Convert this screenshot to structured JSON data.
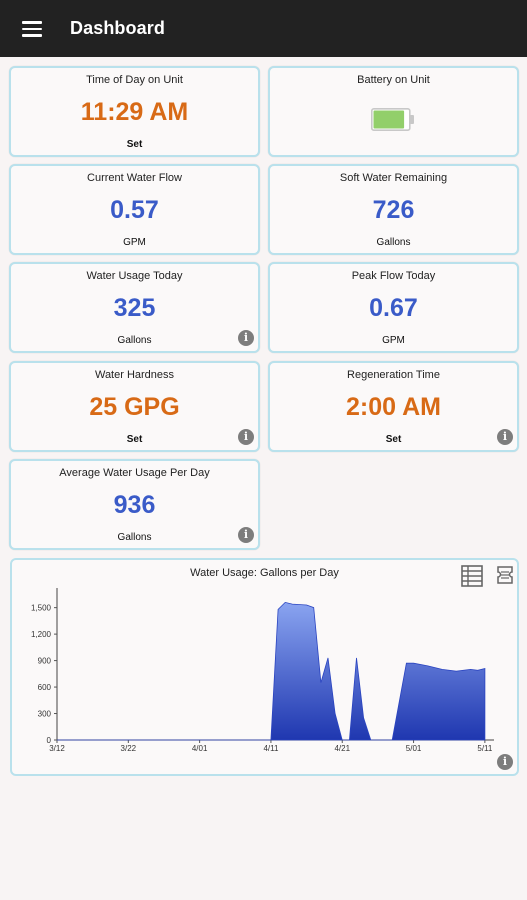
{
  "app": {
    "title": "Dashboard",
    "menu_icon": "menu-icon"
  },
  "cards": {
    "time_of_day": {
      "label": "Time of Day on Unit",
      "value": "11:29 AM",
      "unit": "Set"
    },
    "battery": {
      "label": "Battery on Unit",
      "level": 0.9,
      "icon": "battery-icon"
    },
    "current_flow": {
      "label": "Current Water Flow",
      "value": "0.57",
      "unit": "GPM"
    },
    "soft_water": {
      "label": "Soft Water Remaining",
      "value": "726",
      "unit": "Gallons"
    },
    "usage_today": {
      "label": "Water Usage Today",
      "value": "325",
      "unit": "Gallons"
    },
    "peak_flow": {
      "label": "Peak Flow Today",
      "value": "0.67",
      "unit": "GPM"
    },
    "hardness": {
      "label": "Water Hardness",
      "value": "25 GPG",
      "unit": "Set"
    },
    "regeneration": {
      "label": "Regeneration Time",
      "value": "2:00 AM",
      "unit": "Set"
    },
    "avg_usage": {
      "label": "Average Water Usage Per Day",
      "value": "936",
      "unit": "Gallons"
    }
  },
  "colors": {
    "orange": "#d86a16",
    "blue": "#3a5bc8",
    "card_border": "#b9e1ec",
    "appbar": "#222222",
    "chart_fill_top": "#8aa4f0",
    "chart_fill_bottom": "#1f37b0"
  },
  "chart_data": {
    "type": "area",
    "title": "Water Usage: Gallons per Day",
    "xlabel": "",
    "ylabel": "",
    "ylim": [
      0,
      1700
    ],
    "yticks": [
      0,
      300,
      600,
      900,
      1200,
      1500
    ],
    "ytick_labels": [
      "0",
      "300",
      "600",
      "900",
      "1,200",
      "1,500"
    ],
    "xticks": [
      "3/12",
      "3/22",
      "4/01",
      "4/11",
      "4/21",
      "5/01",
      "5/11"
    ],
    "grid": false,
    "x_start": "3/12",
    "x_end": "5/12",
    "series": [
      {
        "points": [
          [
            "3/12",
            0
          ],
          [
            "4/11",
            0
          ],
          [
            "4/12",
            1480
          ],
          [
            "4/13",
            1560
          ],
          [
            "4/14",
            1540
          ],
          [
            "4/16",
            1530
          ],
          [
            "4/17",
            1500
          ],
          [
            "4/18",
            650
          ],
          [
            "4/19",
            930
          ],
          [
            "4/20",
            300
          ],
          [
            "4/21",
            0
          ],
          [
            "4/22",
            0
          ],
          [
            "4/23",
            930
          ],
          [
            "4/24",
            250
          ],
          [
            "4/25",
            0
          ],
          [
            "4/28",
            0
          ],
          [
            "4/30",
            870
          ],
          [
            "5/01",
            870
          ],
          [
            "5/03",
            840
          ],
          [
            "5/05",
            800
          ],
          [
            "5/07",
            780
          ],
          [
            "5/09",
            800
          ],
          [
            "5/10",
            790
          ],
          [
            "5/11",
            810
          ]
        ]
      }
    ]
  }
}
